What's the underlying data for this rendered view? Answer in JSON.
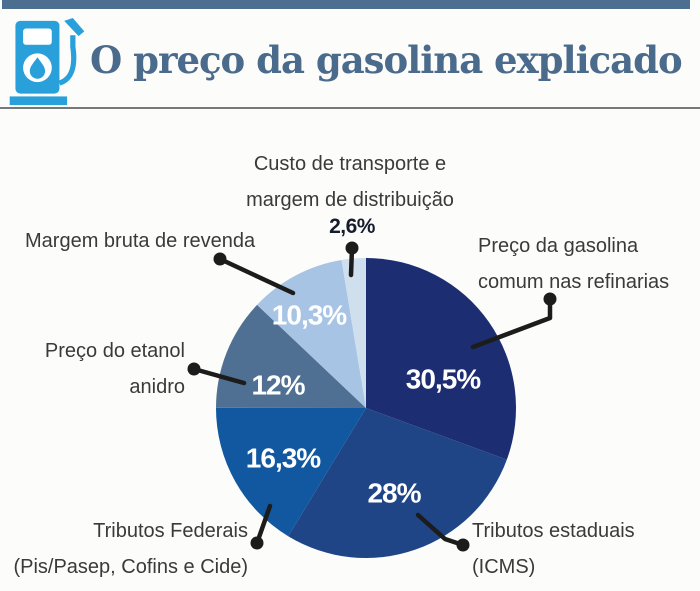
{
  "header": {
    "title": "O preço da gasolina explicado",
    "icon": "fuel-pump-icon",
    "bar_color": "#4c6e90",
    "title_color": "#4a6b8c",
    "pump_color": "#29a0da"
  },
  "chart_data": {
    "type": "pie",
    "title": "O preço da gasolina explicado",
    "direction": "clockwise",
    "start_angle_deg": 0,
    "legend_position": "callout-labels",
    "slices": [
      {
        "label": "Preço da gasolina comum nas refinarias",
        "value": 30.5,
        "display": "30,5%",
        "color": "#1c2d72"
      },
      {
        "label": "Tributos estaduais (ICMS)",
        "value": 28,
        "display": "28%",
        "color": "#1f4587"
      },
      {
        "label": "Tributos Federais (Pis/Pasep, Cofins e Cide)",
        "value": 16.3,
        "display": "16,3%",
        "color": "#1158a0"
      },
      {
        "label": "Preço do etanol anidro",
        "value": 12,
        "display": "12%",
        "color": "#4f7092"
      },
      {
        "label": "Margem bruta de revenda",
        "value": 10.3,
        "display": "10,3%",
        "color": "#a7c4e4"
      },
      {
        "label": "Custo de transporte e margem de distribuição",
        "value": 2.6,
        "display": "2,6%",
        "color": "#cfdfee"
      }
    ]
  },
  "callout_labels": {
    "transporte": {
      "line1": "Custo de transporte e",
      "line2": "margem de distribuição"
    },
    "revenda": {
      "line1": "Margem bruta de revenda"
    },
    "refinarias": {
      "line1": "Preço da gasolina",
      "line2": "comum nas refinarias"
    },
    "etanol": {
      "line1": "Preço do etanol",
      "line2": "anidro"
    },
    "federais": {
      "line1": "Tributos Federais",
      "line2": "(Pis/Pasep, Cofins e Cide)"
    },
    "icms": {
      "line1": "Tributos estaduais",
      "line2": "(ICMS)"
    }
  },
  "colors": {
    "label_text": "#3a3a3a",
    "callout_line": "#1c1c1c",
    "percent_text": "#ffffff",
    "divider": "#77787a"
  }
}
